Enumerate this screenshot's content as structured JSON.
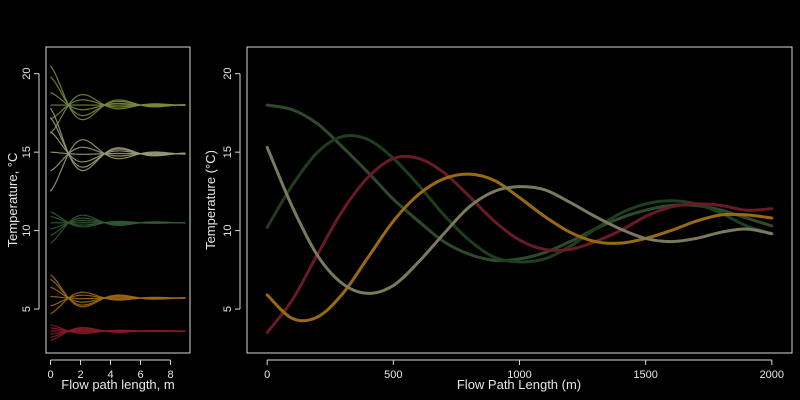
{
  "chart_data": [
    {
      "id": "left",
      "type": "line",
      "xlabel": "Flow path length, m",
      "ylabel": "Temperature, °C",
      "xlim": [
        -0.3,
        9.3
      ],
      "ylim": [
        2.2,
        21.7
      ],
      "xticks": [
        0,
        2,
        4,
        6,
        8
      ],
      "yticks": [
        5,
        10,
        15,
        20
      ],
      "groups": [
        {
          "color": "#7a8a3a",
          "final": 18.0,
          "starts": [
            20.5,
            19.8,
            18.8,
            18.0,
            17.1,
            16.2
          ],
          "decay": 2.3,
          "period": 4.8
        },
        {
          "color": "#9a9a78",
          "final": 14.9,
          "starts": [
            17.8,
            17.2,
            16.3,
            15.0,
            13.8,
            12.5
          ],
          "decay": 2.3,
          "period": 4.8
        },
        {
          "color": "#2f5a2f",
          "final": 10.5,
          "starts": [
            11.2,
            10.9,
            10.5,
            10.1,
            9.7,
            9.2
          ],
          "decay": 2.3,
          "period": 4.8
        },
        {
          "color": "#a06a10",
          "final": 5.7,
          "starts": [
            7.2,
            6.9,
            6.4,
            5.8,
            5.2,
            4.7
          ],
          "decay": 2.3,
          "period": 4.8
        },
        {
          "color": "#8a1a2a",
          "final": 3.6,
          "starts": [
            4.0,
            3.8,
            3.6,
            3.4,
            3.2,
            3.0
          ],
          "decay": 2.3,
          "period": 4.8
        }
      ]
    },
    {
      "id": "right",
      "type": "line",
      "xlabel": "Flow Path Length (m)",
      "ylabel": "Temperature (°C)",
      "xlim": [
        -80,
        2080
      ],
      "ylim": [
        2.2,
        21.7
      ],
      "xticks": [
        0,
        500,
        1000,
        1500,
        2000
      ],
      "yticks": [
        5,
        10,
        15,
        20
      ],
      "series": [
        {
          "color": "#2f4a2a",
          "points": [
            [
              0,
              18.0
            ],
            [
              100,
              17.7
            ],
            [
              200,
              16.8
            ],
            [
              300,
              15.3
            ],
            [
              400,
              13.7
            ],
            [
              500,
              12.0
            ],
            [
              600,
              10.6
            ],
            [
              700,
              9.3
            ],
            [
              800,
              8.5
            ],
            [
              900,
              8.1
            ],
            [
              1000,
              8.2
            ],
            [
              1100,
              8.6
            ],
            [
              1200,
              9.3
            ],
            [
              1300,
              10.1
            ],
            [
              1400,
              10.8
            ],
            [
              1500,
              11.3
            ],
            [
              1600,
              11.6
            ],
            [
              1700,
              11.6
            ],
            [
              1800,
              11.3
            ],
            [
              1900,
              10.8
            ],
            [
              2000,
              10.3
            ]
          ]
        },
        {
          "color": "#1f3d1f",
          "points": [
            [
              0,
              10.2
            ],
            [
              100,
              12.9
            ],
            [
              200,
              15.0
            ],
            [
              300,
              16.0
            ],
            [
              400,
              15.8
            ],
            [
              500,
              14.6
            ],
            [
              600,
              12.9
            ],
            [
              700,
              11.0
            ],
            [
              800,
              9.4
            ],
            [
              900,
              8.3
            ],
            [
              1000,
              8.0
            ],
            [
              1100,
              8.2
            ],
            [
              1200,
              9.0
            ],
            [
              1300,
              10.1
            ],
            [
              1400,
              11.1
            ],
            [
              1500,
              11.7
            ],
            [
              1600,
              11.9
            ],
            [
              1700,
              11.7
            ],
            [
              1800,
              11.1
            ],
            [
              1900,
              10.3
            ],
            [
              2000,
              9.8
            ]
          ]
        },
        {
          "color": "#6a1a26",
          "points": [
            [
              0,
              3.5
            ],
            [
              100,
              5.6
            ],
            [
              200,
              8.5
            ],
            [
              300,
              11.3
            ],
            [
              400,
              13.4
            ],
            [
              500,
              14.6
            ],
            [
              600,
              14.6
            ],
            [
              700,
              13.7
            ],
            [
              800,
              12.2
            ],
            [
              900,
              10.6
            ],
            [
              1000,
              9.4
            ],
            [
              1100,
              8.8
            ],
            [
              1200,
              8.8
            ],
            [
              1300,
              9.3
            ],
            [
              1400,
              10.0
            ],
            [
              1500,
              10.9
            ],
            [
              1600,
              11.5
            ],
            [
              1700,
              11.7
            ],
            [
              1800,
              11.6
            ],
            [
              1900,
              11.3
            ],
            [
              2000,
              11.4
            ]
          ]
        },
        {
          "color": "#9a6a10",
          "points": [
            [
              0,
              5.9
            ],
            [
              100,
              4.4
            ],
            [
              200,
              4.5
            ],
            [
              300,
              6.0
            ],
            [
              400,
              8.3
            ],
            [
              500,
              10.6
            ],
            [
              600,
              12.3
            ],
            [
              700,
              13.3
            ],
            [
              800,
              13.6
            ],
            [
              900,
              13.2
            ],
            [
              1000,
              12.1
            ],
            [
              1100,
              10.9
            ],
            [
              1200,
              9.9
            ],
            [
              1300,
              9.3
            ],
            [
              1400,
              9.2
            ],
            [
              1500,
              9.5
            ],
            [
              1600,
              10.0
            ],
            [
              1700,
              10.6
            ],
            [
              1800,
              11.0
            ],
            [
              1900,
              11.0
            ],
            [
              2000,
              10.8
            ]
          ]
        },
        {
          "color": "#7a7a5e",
          "points": [
            [
              0,
              15.3
            ],
            [
              100,
              11.5
            ],
            [
              200,
              8.4
            ],
            [
              300,
              6.6
            ],
            [
              400,
              6.0
            ],
            [
              500,
              6.5
            ],
            [
              600,
              8.0
            ],
            [
              700,
              9.8
            ],
            [
              800,
              11.5
            ],
            [
              900,
              12.5
            ],
            [
              1000,
              12.8
            ],
            [
              1100,
              12.6
            ],
            [
              1200,
              11.8
            ],
            [
              1300,
              10.9
            ],
            [
              1400,
              10.1
            ],
            [
              1500,
              9.5
            ],
            [
              1600,
              9.3
            ],
            [
              1700,
              9.5
            ],
            [
              1800,
              9.9
            ],
            [
              1900,
              10.1
            ],
            [
              2000,
              9.8
            ]
          ]
        }
      ]
    }
  ]
}
